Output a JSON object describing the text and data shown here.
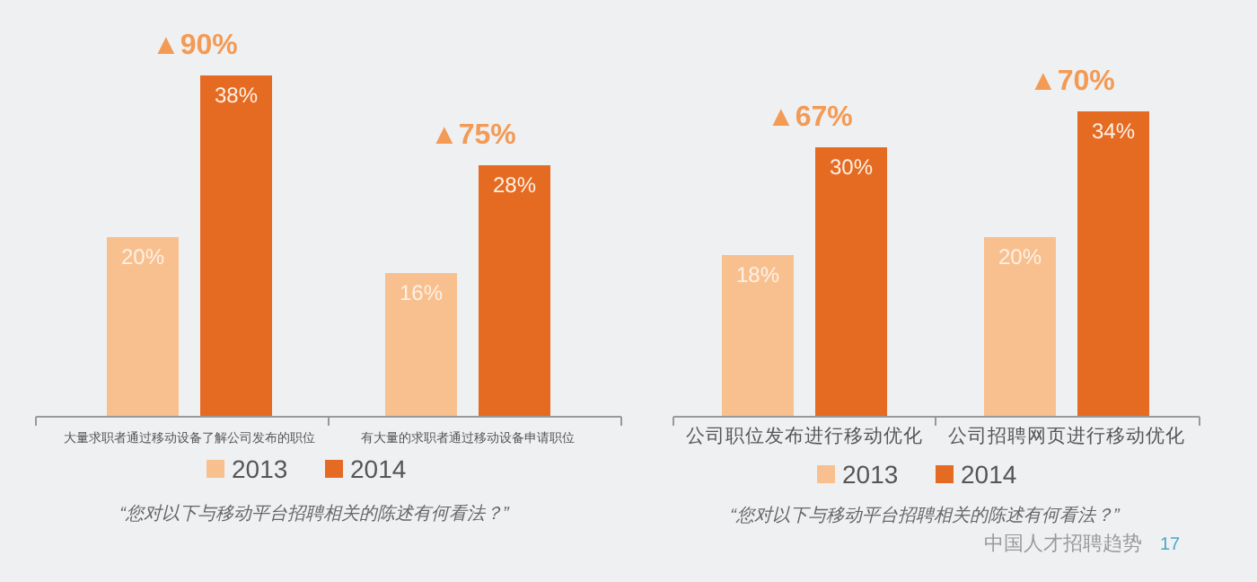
{
  "chart_data": [
    {
      "type": "bar",
      "categories": [
        "大量求职者通过移动设备了解公司发布的职位",
        "有大量的求职者通过移动设备申请职位"
      ],
      "series": [
        {
          "name": "2013",
          "color": "#f9c08f",
          "values": [
            20,
            16
          ],
          "value_labels": [
            "20%",
            "16%"
          ]
        },
        {
          "name": "2014",
          "color": "#e66b22",
          "values": [
            38,
            28
          ],
          "value_labels": [
            "38%",
            "28%"
          ]
        }
      ],
      "legend": "bottom",
      "annotations": [
        "▲90%",
        "▲75%",
        "“您对以下与移动平台招聘相关的陈述有何看法？”"
      ]
    },
    {
      "type": "bar",
      "categories": [
        "公司职位发布进行移动优化",
        "公司招聘网页进行移动优化"
      ],
      "series": [
        {
          "name": "2013",
          "color": "#f9c08f",
          "values": [
            18,
            20
          ],
          "value_labels": [
            "18%",
            "20%"
          ]
        },
        {
          "name": "2014",
          "color": "#e66b22",
          "values": [
            30,
            34
          ],
          "value_labels": [
            "30%",
            "34%"
          ]
        }
      ],
      "legend": "bottom",
      "annotations": [
        "▲67%",
        "▲70%",
        "“您对以下与移动平台招聘相关的陈述有何看法？”",
        "中国人才招聘趋势",
        "17"
      ]
    }
  ]
}
